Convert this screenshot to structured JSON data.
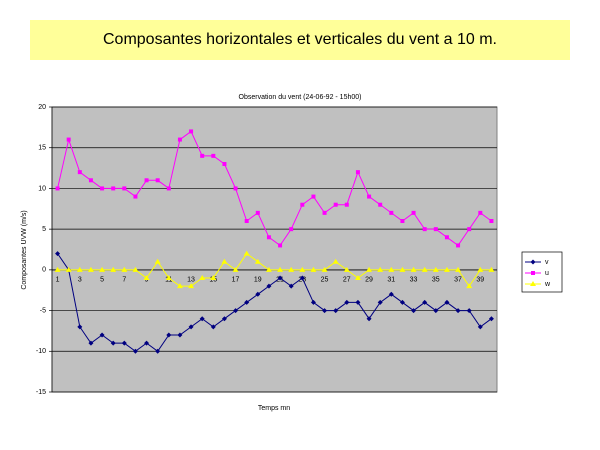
{
  "header": {
    "title": "Composantes horizontales et verticales du vent a  10 m."
  },
  "chart_data": {
    "type": "line",
    "title": "Observation du vent (24-06-92 - 15h00)",
    "x_label": "Temps mn",
    "y_label": "Composantes UVW (m/s)",
    "categories": [
      1,
      null,
      3,
      null,
      5,
      null,
      7,
      null,
      9,
      null,
      11,
      null,
      13,
      null,
      15,
      null,
      17,
      null,
      19,
      null,
      21,
      null,
      23,
      null,
      25,
      null,
      27,
      null,
      29,
      null,
      31,
      null,
      33,
      null,
      35,
      null,
      37,
      null,
      39,
      null
    ],
    "series": [
      {
        "name": "v",
        "color": "#000080",
        "marker": "diamond",
        "values": [
          2,
          0,
          -7,
          -9,
          -8,
          -9,
          -9,
          -10,
          -9,
          -10,
          -8,
          -8,
          -7,
          -6,
          -7,
          -6,
          -5,
          -4,
          -3,
          -2,
          -1,
          -2,
          -1,
          -4,
          -5,
          -5,
          -4,
          -4,
          -6,
          -4,
          -3,
          -4,
          -5,
          -4,
          -5,
          -4,
          -5,
          -5,
          -7,
          -6
        ]
      },
      {
        "name": "u",
        "color": "#ff00ff",
        "marker": "square",
        "values": [
          10,
          16,
          12,
          11,
          10,
          10,
          10,
          9,
          11,
          11,
          10,
          16,
          17,
          14,
          14,
          13,
          10,
          6,
          7,
          4,
          3,
          5,
          8,
          9,
          7,
          8,
          8,
          12,
          9,
          8,
          7,
          6,
          7,
          5,
          5,
          4,
          3,
          5,
          7,
          6
        ]
      },
      {
        "name": "w",
        "color": "#ffff00",
        "marker": "triangle",
        "values": [
          0,
          0,
          0,
          0,
          0,
          0,
          0,
          0,
          -1,
          1,
          -1,
          -2,
          -2,
          -1,
          -1,
          1,
          0,
          2,
          1,
          0,
          0,
          0,
          0,
          0,
          0,
          1,
          0,
          -1,
          0,
          0,
          0,
          0,
          0,
          0,
          0,
          0,
          0,
          -2,
          0,
          0
        ]
      }
    ],
    "ylim": [
      -15,
      20
    ],
    "yticks": [
      -15,
      -10,
      -5,
      0,
      5,
      10,
      15,
      20
    ],
    "grid": true
  }
}
